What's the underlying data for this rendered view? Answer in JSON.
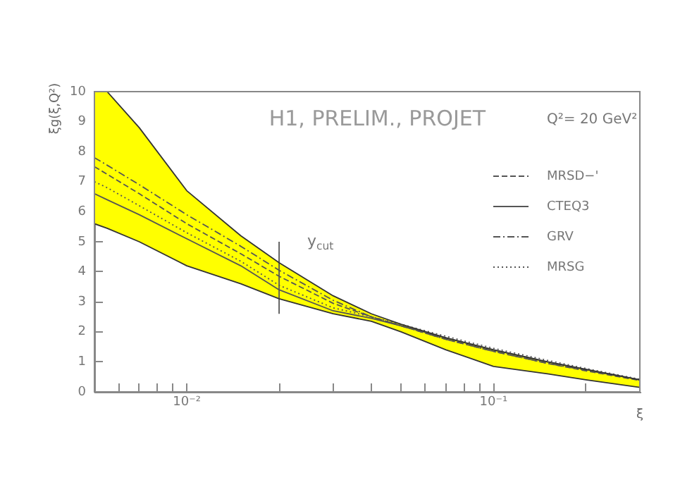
{
  "chart_data": {
    "type": "line",
    "title": "H1, PRELIM., PROJET",
    "xlabel": "ξ",
    "ylabel": "ξg(ξ,Q²)",
    "annotations": [
      "Q²= 20 GeV²",
      {
        "text": "y$_{cut}$",
        "x": 0.02,
        "y": 5.0
      }
    ],
    "x": [
      0.005,
      0.0055,
      0.007,
      0.01,
      0.015,
      0.02,
      0.03,
      0.04,
      0.05,
      0.07,
      0.1,
      0.15,
      0.2,
      0.3
    ],
    "series": [
      {
        "type": "area",
        "color": "#ffff00",
        "values": [
          null,
          null,
          null,
          null,
          null,
          null,
          null,
          null,
          null,
          null,
          null,
          null,
          null,
          null
        ],
        "lower": [
          5.6,
          5.45,
          5.0,
          4.2,
          3.6,
          3.1,
          2.6,
          2.35,
          2.0,
          1.4,
          0.85,
          0.6,
          0.4,
          0.15
        ],
        "upper": [
          10,
          10,
          8.8,
          6.7,
          5.2,
          4.3,
          3.2,
          2.6,
          2.25,
          1.8,
          1.4,
          1.0,
          0.75,
          0.4
        ]
      },
      {
        "type": "line",
        "color": "#333333",
        "values": [
          10,
          10,
          8.8,
          6.7,
          5.2,
          4.3,
          3.2,
          2.6,
          2.25,
          1.8,
          1.4,
          1.0,
          0.75,
          0.4
        ]
      },
      {
        "type": "line",
        "color": "#333333",
        "values": [
          5.6,
          5.45,
          5.0,
          4.2,
          3.6,
          3.1,
          2.6,
          2.35,
          2.0,
          1.4,
          0.85,
          0.6,
          0.4,
          0.15
        ]
      },
      {
        "name": "MRSD−'",
        "color": "#555555",
        "line_style": "dashed",
        "values": [
          7.5,
          7.25,
          6.6,
          5.6,
          4.6,
          3.85,
          2.95,
          2.5,
          2.2,
          1.75,
          1.35,
          0.95,
          0.7,
          0.38
        ]
      },
      {
        "name": "CTEQ3",
        "color": "#555555",
        "line_style": "solid",
        "values": [
          6.6,
          6.4,
          5.9,
          5.1,
          4.2,
          3.4,
          2.7,
          2.45,
          2.2,
          1.8,
          1.4,
          1.0,
          0.75,
          0.4
        ]
      },
      {
        "name": "GRV",
        "color": "#555555",
        "line_style": "dashdot",
        "values": [
          7.8,
          7.55,
          6.9,
          5.9,
          4.85,
          4.05,
          3.05,
          2.5,
          2.2,
          1.75,
          1.35,
          0.95,
          0.72,
          0.4
        ]
      },
      {
        "name": "MRSG",
        "color": "#555555",
        "line_style": "dotted",
        "values": [
          7.0,
          6.8,
          6.2,
          5.3,
          4.35,
          3.55,
          2.8,
          2.5,
          2.25,
          1.85,
          1.45,
          1.05,
          0.78,
          0.42
        ]
      },
      {
        "type": "line",
        "color": "#555555",
        "x": [
          0.02,
          0.02
        ],
        "values": [
          2.6,
          5.0
        ]
      }
    ],
    "log": "x",
    "xlim": [
      0.005,
      0.3
    ],
    "ylim": [
      0,
      10
    ],
    "xticks": [
      {
        "value": 0.006,
        "label": null
      },
      {
        "value": 0.007,
        "label": null
      },
      {
        "value": 0.008,
        "label": null
      },
      {
        "value": 0.009,
        "label": null
      },
      {
        "value": 0.01,
        "label": "10⁻²"
      },
      {
        "value": 0.02,
        "label": null
      },
      {
        "value": 0.03,
        "label": null
      },
      {
        "value": 0.04,
        "label": null
      },
      {
        "value": 0.05,
        "label": null
      },
      {
        "value": 0.06,
        "label": null
      },
      {
        "value": 0.07,
        "label": null
      },
      {
        "value": 0.08,
        "label": null
      },
      {
        "value": 0.09,
        "label": null
      },
      {
        "value": 0.1,
        "label": "10⁻¹"
      },
      {
        "value": 0.2,
        "label": null
      }
    ],
    "yticks": [
      0,
      1,
      2,
      3,
      4,
      5,
      6,
      7,
      8,
      9,
      10
    ],
    "grid": false,
    "legend": "top right"
  }
}
